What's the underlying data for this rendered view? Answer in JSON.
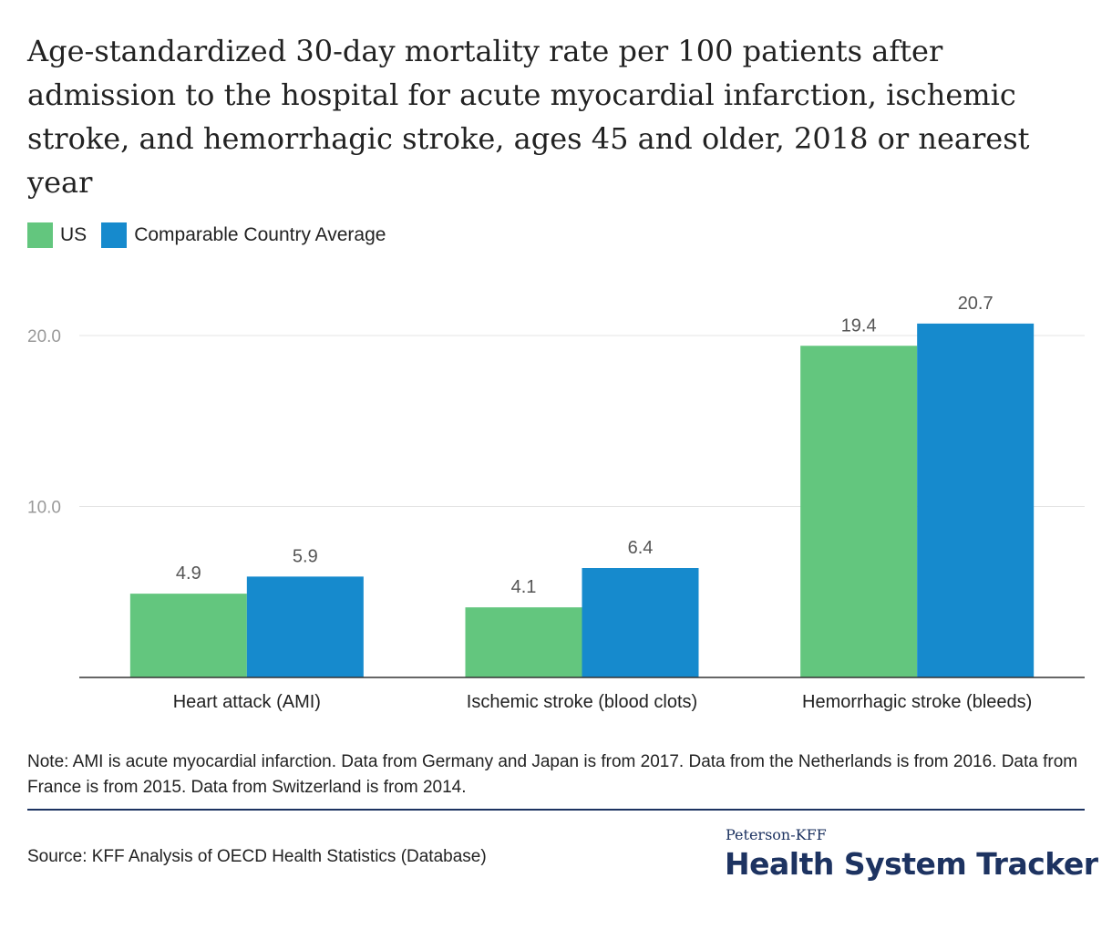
{
  "title": "Age-standardized 30-day mortality rate per 100 patients after admission to the hospital for acute myocardial infarction, ischemic stroke, and hemorrhagic stroke, ages 45 and older, 2018 or nearest year",
  "chart_data": {
    "type": "bar",
    "categories": [
      "Heart attack (AMI)",
      "Ischemic stroke (blood clots)",
      "Hemorrhagic stroke (bleeds)"
    ],
    "series": [
      {
        "name": "US",
        "values": [
          4.9,
          4.1,
          19.4
        ],
        "labels": [
          "4.9",
          "4.1",
          "19.4"
        ],
        "color": "#63c67e"
      },
      {
        "name": "Comparable Country Average",
        "values": [
          5.9,
          6.4,
          20.7
        ],
        "labels": [
          "5.9",
          "6.4",
          "20.7"
        ],
        "color": "#168acd"
      }
    ],
    "yticks": [
      10,
      20
    ],
    "ytick_labels": [
      "10.0",
      "20.0"
    ],
    "ylim": [
      0,
      20.7
    ],
    "grid": true,
    "legend_placement": "top-left",
    "xlabel": "",
    "ylabel": ""
  },
  "note": "Note: AMI is acute myocardial infarction. Data from Germany and Japan is from 2017. Data from the Netherlands is from 2016. Data from France is from 2015. Data from Switzerland is from 2014.",
  "source": "Source: KFF Analysis of OECD Health Statistics (Database)",
  "brand": {
    "small": "Peterson-KFF",
    "big": "Health System Tracker"
  },
  "colors": {
    "brand": "#1d3361",
    "us": "#63c67e",
    "comparable": "#168acd"
  }
}
